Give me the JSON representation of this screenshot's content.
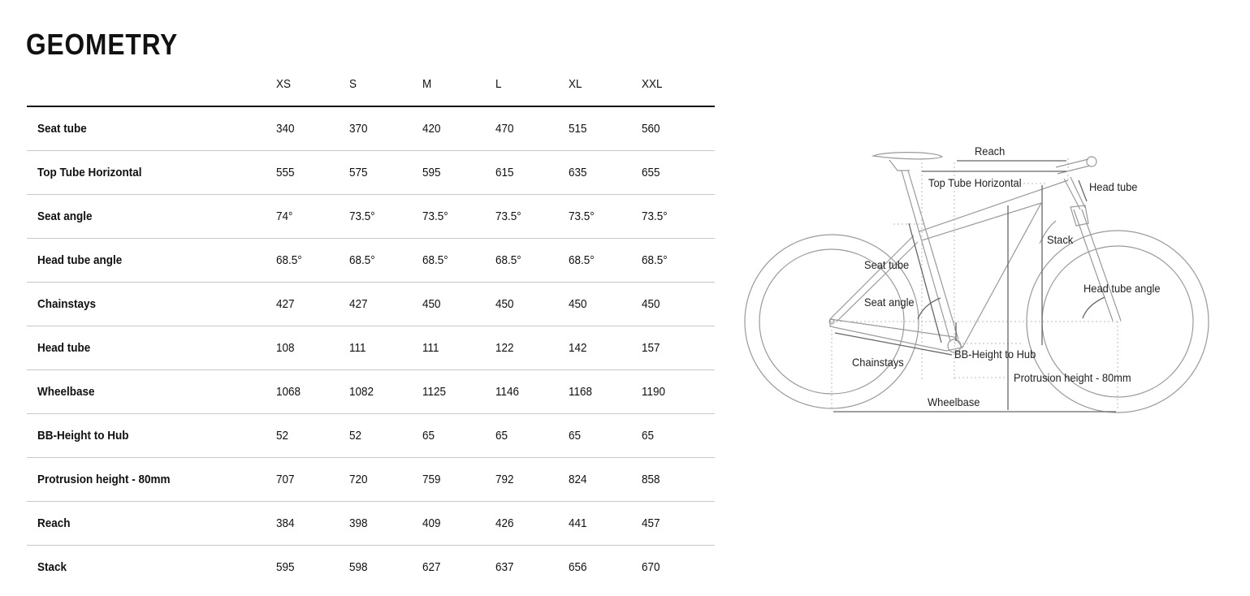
{
  "title": "GEOMETRY",
  "table": {
    "columns": [
      "XS",
      "S",
      "M",
      "L",
      "XL",
      "XXL"
    ],
    "rows": [
      {
        "label": "Seat tube",
        "values": [
          "340",
          "370",
          "420",
          "470",
          "515",
          "560"
        ]
      },
      {
        "label": "Top Tube Horizontal",
        "values": [
          "555",
          "575",
          "595",
          "615",
          "635",
          "655"
        ]
      },
      {
        "label": "Seat angle",
        "values": [
          "74°",
          "73.5°",
          "73.5°",
          "73.5°",
          "73.5°",
          "73.5°"
        ]
      },
      {
        "label": "Head tube angle",
        "values": [
          "68.5°",
          "68.5°",
          "68.5°",
          "68.5°",
          "68.5°",
          "68.5°"
        ]
      },
      {
        "label": "Chainstays",
        "values": [
          "427",
          "427",
          "450",
          "450",
          "450",
          "450"
        ]
      },
      {
        "label": "Head tube",
        "values": [
          "108",
          "111",
          "111",
          "122",
          "142",
          "157"
        ]
      },
      {
        "label": "Wheelbase",
        "values": [
          "1068",
          "1082",
          "1125",
          "1146",
          "1168",
          "1190"
        ]
      },
      {
        "label": "BB-Height to Hub",
        "values": [
          "52",
          "52",
          "65",
          "65",
          "65",
          "65"
        ]
      },
      {
        "label": "Protrusion height - 80mm",
        "values": [
          "707",
          "720",
          "759",
          "792",
          "824",
          "858"
        ]
      },
      {
        "label": "Reach",
        "values": [
          "384",
          "398",
          "409",
          "426",
          "441",
          "457"
        ]
      },
      {
        "label": "Stack",
        "values": [
          "595",
          "598",
          "627",
          "637",
          "656",
          "670"
        ]
      }
    ]
  },
  "diagram": {
    "labels": {
      "reach": "Reach",
      "top_tube": "Top Tube Horizontal",
      "head_tube": "Head tube",
      "stack": "Stack",
      "seat_tube": "Seat tube",
      "head_tube_angle": "Head tube angle",
      "seat_angle": "Seat angle",
      "bb_height": "BB-Height to Hub",
      "chainstays": "Chainstays",
      "protrusion": "Protrusion height - 80mm",
      "wheelbase": "Wheelbase"
    }
  }
}
